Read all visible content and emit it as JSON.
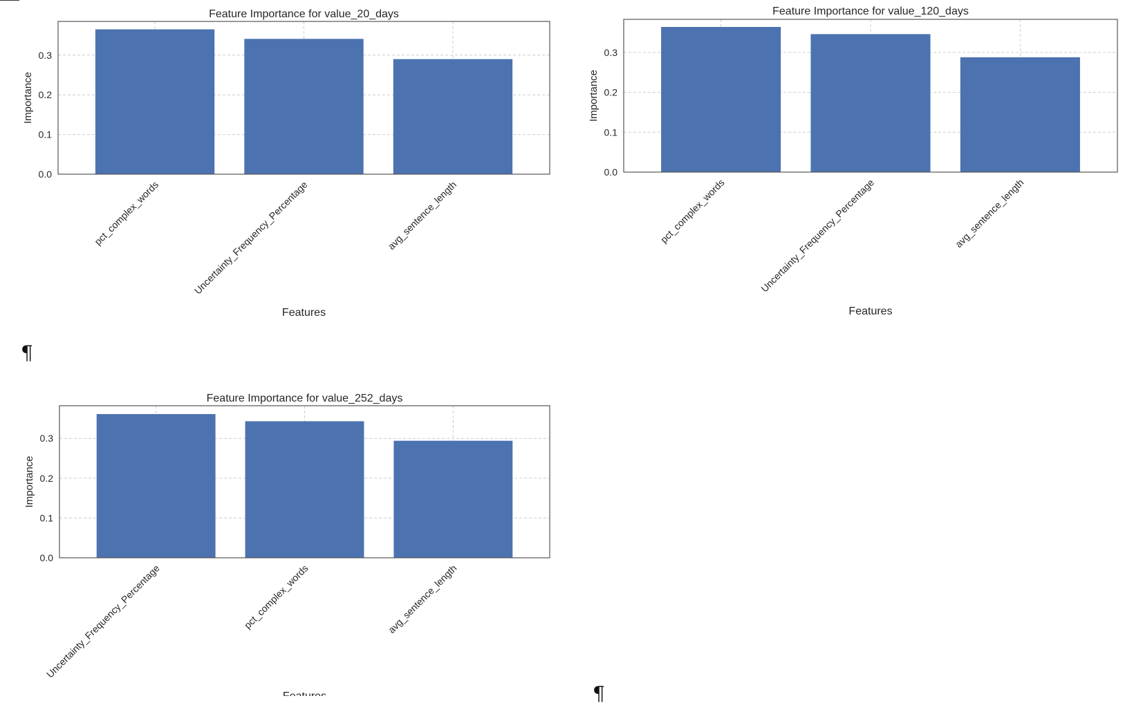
{
  "chart_data": [
    {
      "type": "bar",
      "title": "Feature Importance for value_20_days",
      "xlabel": "Features",
      "ylabel": "Importance",
      "categories": [
        "pct_complex_words",
        "Uncertainty_Frequency_Percentage",
        "avg_sentence_length"
      ],
      "values": [
        0.365,
        0.341,
        0.29
      ],
      "ylim": [
        0,
        0.385
      ],
      "yticks": [
        "0.0",
        "0.1",
        "0.2",
        "0.3"
      ],
      "grid": true,
      "bar_color": "#4c72b0"
    },
    {
      "type": "bar",
      "title": "Feature Importance for value_120_days",
      "xlabel": "Features",
      "ylabel": "Importance",
      "categories": [
        "pct_complex_words",
        "Uncertainty_Frequency_Percentage",
        "avg_sentence_length"
      ],
      "values": [
        0.364,
        0.346,
        0.288
      ],
      "ylim": [
        0,
        0.383
      ],
      "yticks": [
        "0.0",
        "0.1",
        "0.2",
        "0.3"
      ],
      "grid": true,
      "bar_color": "#4c72b0"
    },
    {
      "type": "bar",
      "title": "Feature Importance for value_252_days",
      "xlabel": "Features",
      "ylabel": "Importance",
      "categories": [
        "Uncertainty_Frequency_Percentage",
        "pct_complex_words",
        "avg_sentence_length"
      ],
      "values": [
        0.361,
        0.343,
        0.294
      ],
      "ylim": [
        0,
        0.382
      ],
      "yticks": [
        "0.0",
        "0.1",
        "0.2",
        "0.3"
      ],
      "grid": true,
      "bar_color": "#4c72b0"
    }
  ],
  "page": {
    "pilcrow_1": "¶",
    "pilcrow_2": "¶"
  },
  "colors": {
    "axes_edge": "#555555",
    "grid": "#cccccc",
    "text": "#262626"
  }
}
